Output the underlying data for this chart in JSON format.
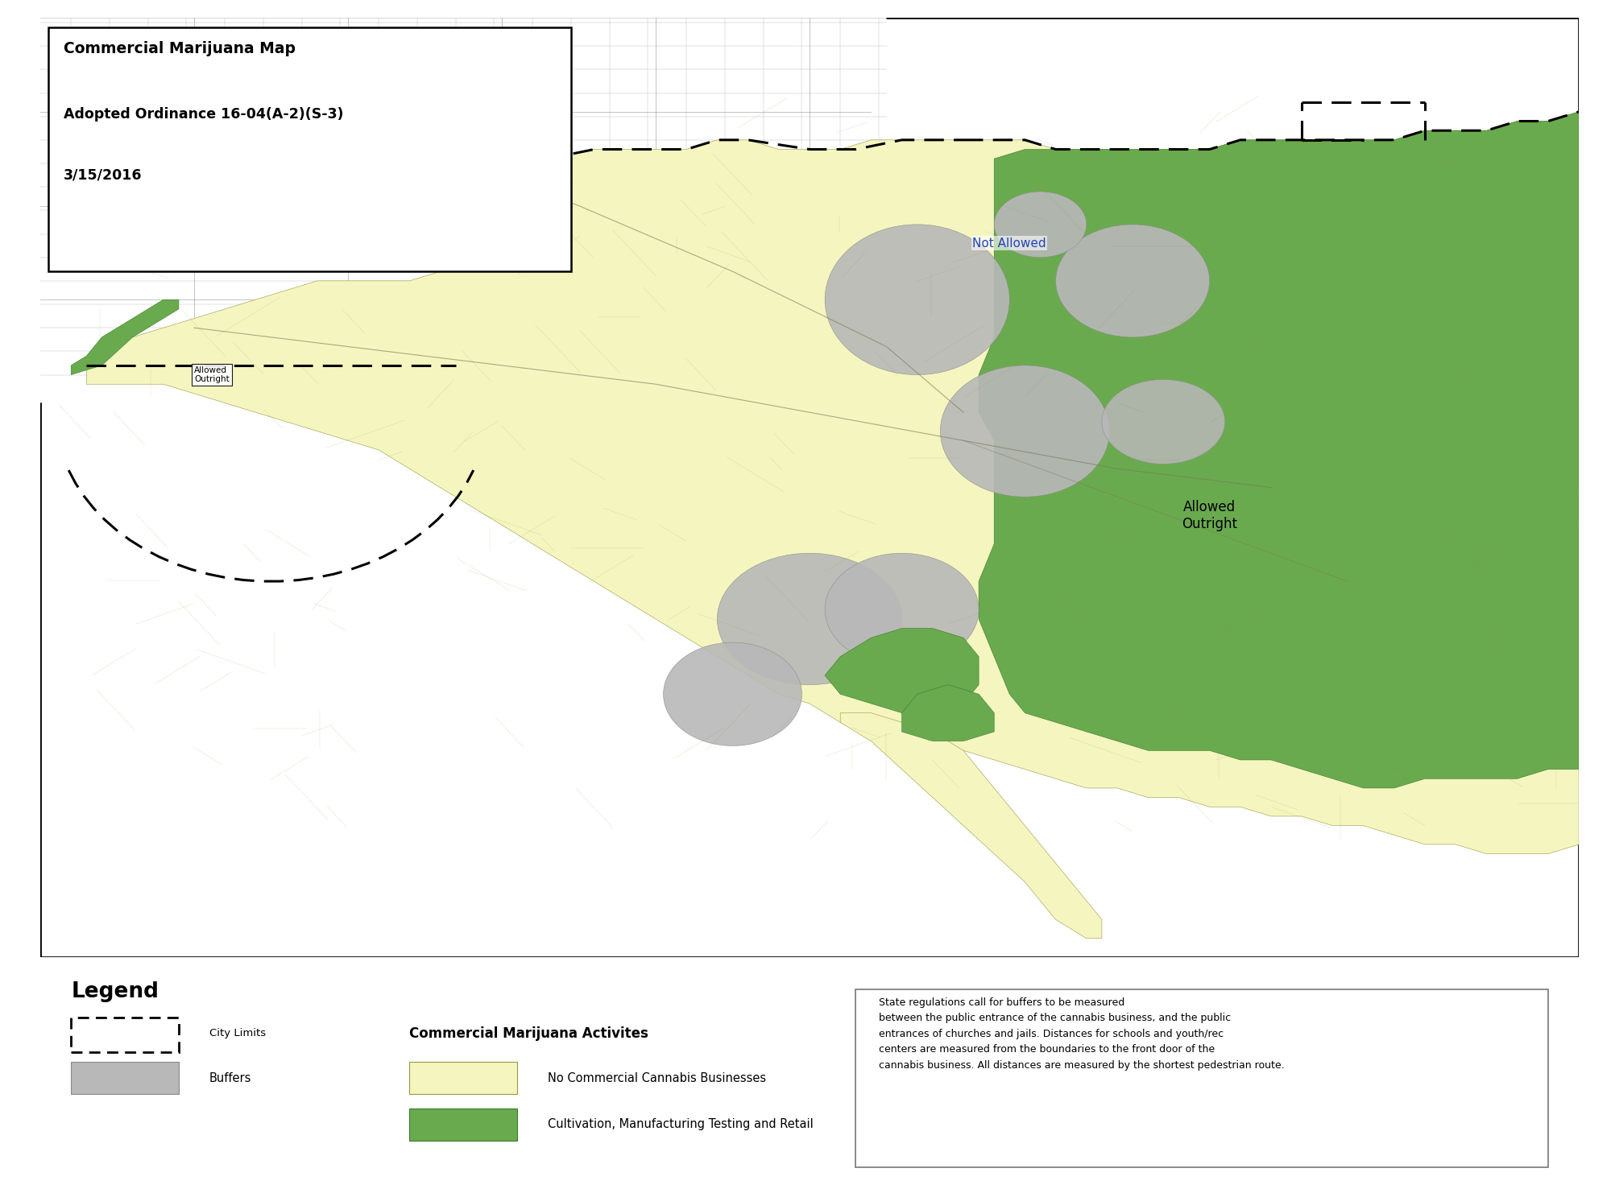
{
  "title_line1": "Commercial Marijuana Map",
  "title_line2": "Adopted Ordinance 16-04(A-2)(S-3)",
  "title_line3": "3/15/2016",
  "bg_color": "#ffffff",
  "yellow_color": "#f5f5c0",
  "green_color": "#6aaa4e",
  "gray_color": "#b8b8b8",
  "not_allowed_label": "Not Allowed",
  "allowed_outright_label_left": "Allowed\nOutright",
  "allowed_outright_label_right": "Allowed\nOutright",
  "legend_title": "Legend",
  "legend_city_limits": "City Limits",
  "legend_commercial": "Commercial Marijuana Activites",
  "legend_buffers": "Buffers",
  "legend_no_commercial": "No Commercial Cannabis Businesses",
  "legend_cultivation": "Cultivation, Manufacturing Testing and Retail",
  "note_text": "State regulations call for buffers to be measured\nbetween the public entrance of the cannabis business, and the public\nentrances of churches and jails. Distances for schools and youth/rec\ncenters are measured from the boundaries to the front door of the\ncannabis business. All distances are measured by the shortest pedestrian route."
}
